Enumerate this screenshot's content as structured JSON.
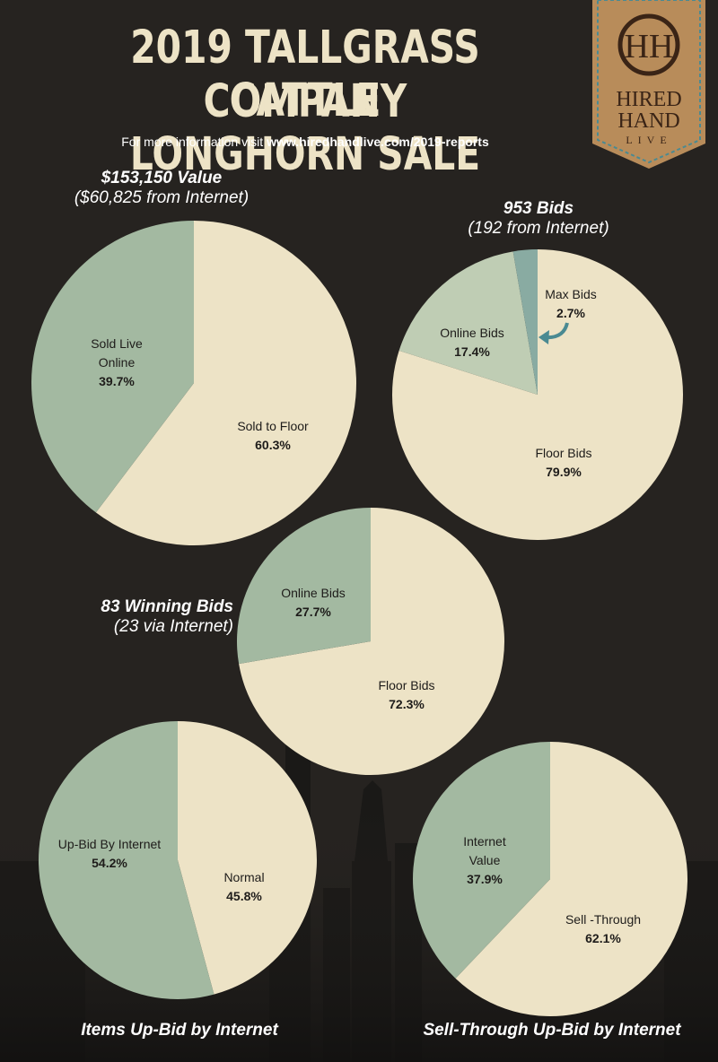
{
  "header": {
    "title_line1": "2019 TALLGRASS CATTLE",
    "title_line2": "COMPANY LONGHORN SALE",
    "info_prefix": "For more information visit",
    "info_url": "www.hiredhandlive.com/2019-reports"
  },
  "logo": {
    "monogram": "HH",
    "line1": "HIRED",
    "line2": "HAND",
    "line3": "LIVE"
  },
  "captions": {
    "value_title": "$153,150 Value",
    "value_sub": "($60,825 from Internet)",
    "bids_title": "953 Bids",
    "bids_sub": "(192 from Internet)",
    "winning_title": "83 Winning Bids",
    "winning_sub": "(23 via Internet)",
    "upbid_title": "Items Up-Bid by Internet",
    "sellthrough_title": "Sell-Through Up-Bid by Internet"
  },
  "colors": {
    "cream": "#ede3c6",
    "sage": "#a3b9a1",
    "light_sage": "#bfcdb4",
    "teal": "#89aba2",
    "arrow": "#4a8a92",
    "background": "#262320"
  },
  "chart_data": [
    {
      "type": "pie",
      "title": "$153,150 Value",
      "subtitle": "($60,825 from Internet)",
      "slices": [
        {
          "label": "Sold to Floor",
          "value": 60.3,
          "display": "60.3%",
          "color": "#ede3c6"
        },
        {
          "label": "Sold Live Online",
          "value": 39.7,
          "display": "39.7%",
          "color": "#a3b9a1"
        }
      ]
    },
    {
      "type": "pie",
      "title": "953 Bids",
      "subtitle": "(192 from Internet)",
      "slices": [
        {
          "label": "Floor Bids",
          "value": 79.9,
          "display": "79.9%",
          "color": "#ede3c6"
        },
        {
          "label": "Online Bids",
          "value": 17.4,
          "display": "17.4%",
          "color": "#bfcdb4"
        },
        {
          "label": "Max Bids",
          "value": 2.7,
          "display": "2.7%",
          "color": "#89aba2"
        }
      ]
    },
    {
      "type": "pie",
      "title": "83 Winning Bids",
      "subtitle": "(23 via Internet)",
      "slices": [
        {
          "label": "Floor Bids",
          "value": 72.3,
          "display": "72.3%",
          "color": "#ede3c6"
        },
        {
          "label": "Online Bids",
          "value": 27.7,
          "display": "27.7%",
          "color": "#a3b9a1"
        }
      ]
    },
    {
      "type": "pie",
      "title": "Items Up-Bid by Internet",
      "slices": [
        {
          "label": "Normal",
          "value": 45.8,
          "display": "45.8%",
          "color": "#ede3c6"
        },
        {
          "label": "Up-Bid By Internet",
          "value": 54.2,
          "display": "54.2%",
          "color": "#a3b9a1"
        }
      ]
    },
    {
      "type": "pie",
      "title": "Sell-Through Up-Bid by Internet",
      "slices": [
        {
          "label": "Sell -Through",
          "value": 62.1,
          "display": "62.1%",
          "color": "#ede3c6"
        },
        {
          "label": "Internet Value",
          "value": 37.9,
          "display": "37.9%",
          "color": "#a3b9a1"
        }
      ]
    }
  ]
}
